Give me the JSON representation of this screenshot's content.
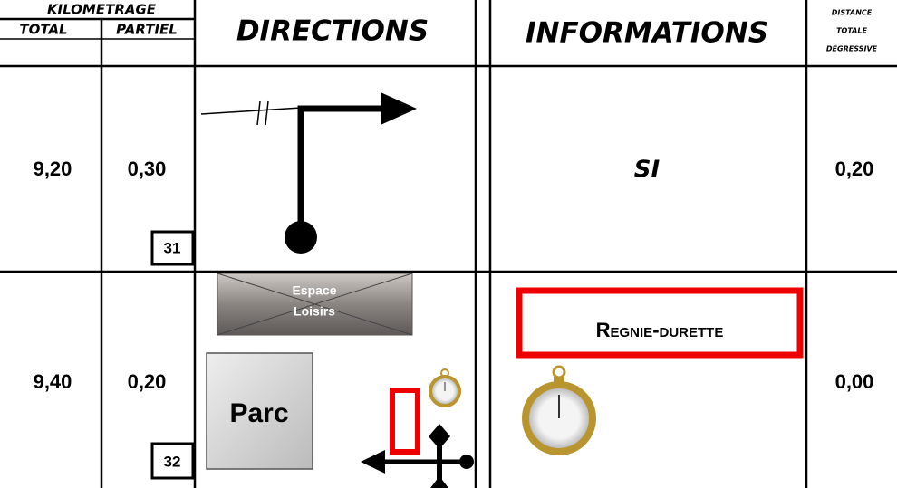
{
  "header": {
    "kilometrage": "KILOMETRAGE",
    "total": "TOTAL",
    "partiel": "PARTIEL",
    "directions": "DIRECTIONS",
    "informations": "INFORMATIONS",
    "distance": [
      "DISTANCE",
      "TOTALE",
      "DEGRESSIVE"
    ]
  },
  "rows": [
    {
      "total": "9,20",
      "partiel": "0,30",
      "number": "31",
      "information": "SI",
      "distance": "0,20"
    },
    {
      "total": "9,40",
      "partiel": "0,20",
      "number": "32",
      "signs": [
        "Espace",
        "Loisirs",
        "Parc"
      ],
      "information": "Regnie-durette",
      "distance": "0,00"
    }
  ]
}
